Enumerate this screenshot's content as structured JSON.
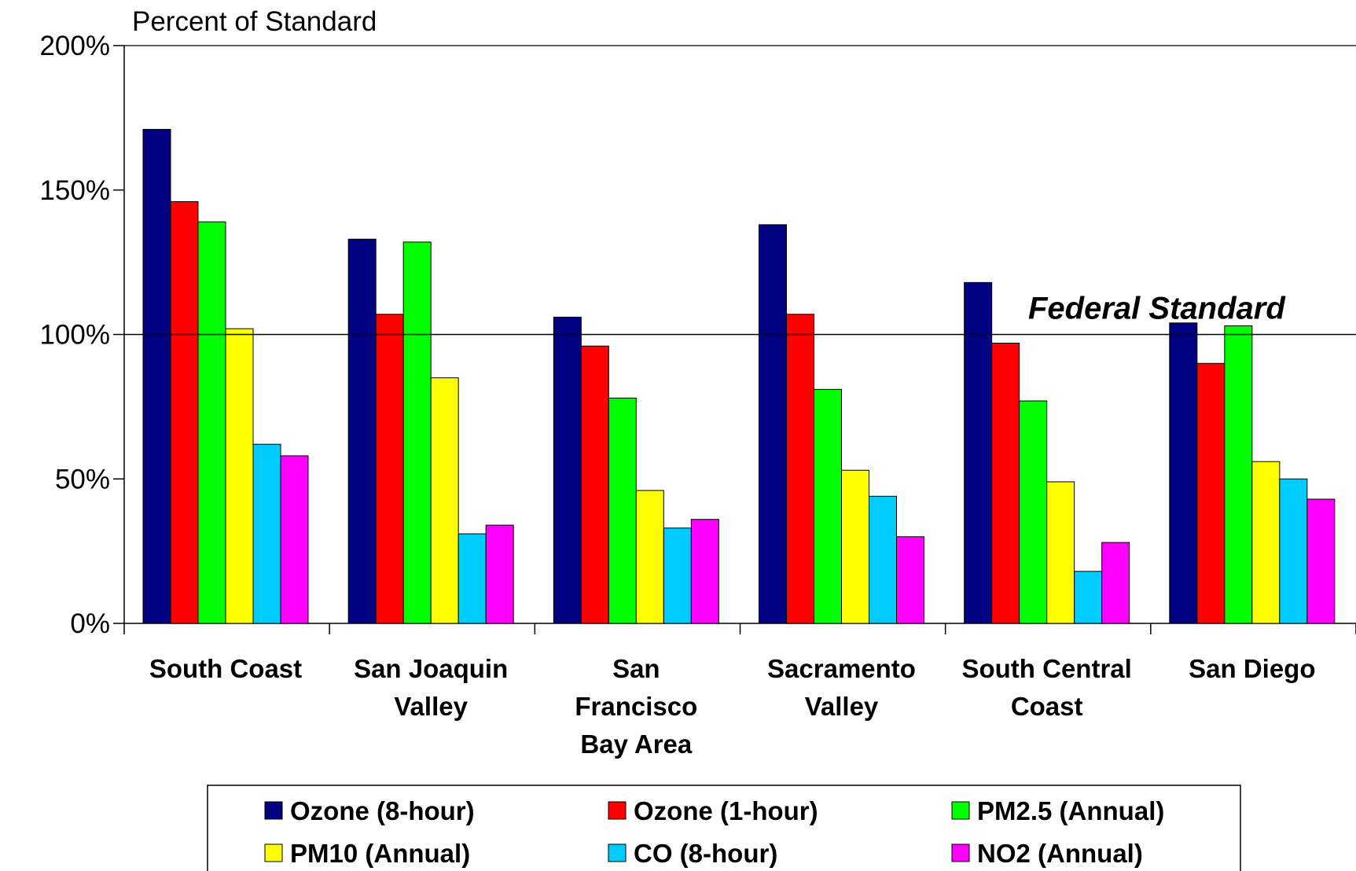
{
  "chart_data": {
    "type": "bar",
    "ylabel": "Percent of Standard",
    "ylim": [
      0,
      200
    ],
    "y_ticks": [
      "0%",
      "50%",
      "100%",
      "150%",
      "200%"
    ],
    "y_tick_values": [
      0,
      50,
      100,
      150,
      200
    ],
    "categories": [
      [
        "South Coast"
      ],
      [
        "San Joaquin",
        "Valley"
      ],
      [
        "San",
        "Francisco",
        "Bay Area"
      ],
      [
        "Sacramento",
        "Valley"
      ],
      [
        "South Central",
        "Coast"
      ],
      [
        "San Diego"
      ]
    ],
    "series": [
      {
        "name": "Ozone (8-hour)",
        "color": "#000080",
        "values": [
          171,
          133,
          106,
          138,
          118,
          104
        ]
      },
      {
        "name": "Ozone (1-hour)",
        "color": "#ff0000",
        "values": [
          146,
          107,
          96,
          107,
          97,
          90
        ]
      },
      {
        "name": "PM2.5 (Annual)",
        "color": "#00ff00",
        "values": [
          139,
          132,
          78,
          81,
          77,
          103
        ]
      },
      {
        "name": "PM10 (Annual)",
        "color": "#ffff00",
        "values": [
          102,
          85,
          46,
          53,
          49,
          56
        ]
      },
      {
        "name": "CO (8-hour)",
        "color": "#00ccff",
        "values": [
          62,
          31,
          33,
          44,
          18,
          50
        ]
      },
      {
        "name": "NO2 (Annual)",
        "color": "#ff00ff",
        "values": [
          58,
          34,
          36,
          30,
          28,
          43
        ]
      }
    ],
    "reference_line": {
      "value": 100,
      "label": "Federal Standard"
    },
    "grid": false,
    "legend_position": "bottom"
  }
}
